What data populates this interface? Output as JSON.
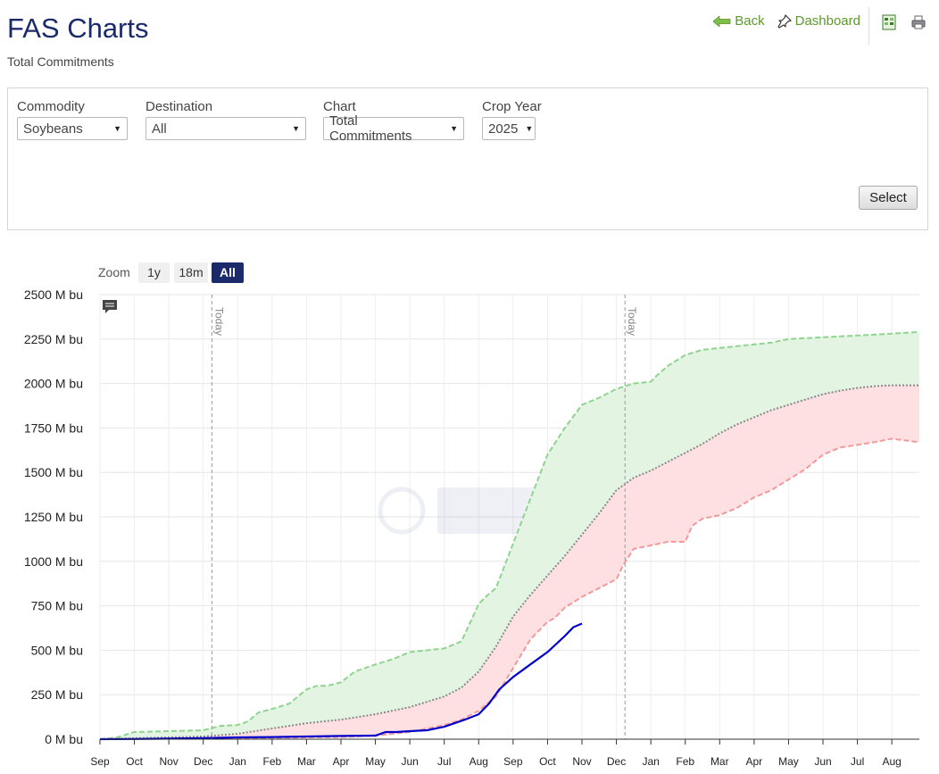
{
  "header": {
    "title": "FAS Charts",
    "subtitle": "Total Commitments"
  },
  "nav": {
    "back_label": "Back",
    "dashboard_label": "Dashboard",
    "export_icon": "excel-icon",
    "print_icon": "print-icon"
  },
  "filters": {
    "commodity": {
      "label": "Commodity",
      "value": "Soybeans"
    },
    "destination": {
      "label": "Destination",
      "value": "All"
    },
    "chart": {
      "label": "Chart",
      "value": "Total Commitments"
    },
    "crop_year": {
      "label": "Crop Year",
      "value": "2025"
    },
    "select_label": "Select"
  },
  "zoom": {
    "label": "Zoom",
    "options": [
      "1y",
      "18m",
      "All"
    ],
    "selected": "All"
  },
  "colors": {
    "accent": "#1b2a6b",
    "link": "#5a9a2a",
    "current": "#0000cc",
    "max_line": "#8fd48f",
    "min_line": "#f29a9a",
    "fill_upper": "#e3f4e3",
    "fill_lower": "#ffe0e2",
    "avg_line": "#888888"
  },
  "chart_data": {
    "type": "area",
    "ylim": [
      0,
      2500
    ],
    "y_ticks": [
      "0 M bu",
      "250 M bu",
      "500 M bu",
      "750 M bu",
      "1000 M bu",
      "1250 M bu",
      "1500 M bu",
      "1750 M bu",
      "2000 M bu",
      "2250 M bu",
      "2500 M bu"
    ],
    "y_tick_values": [
      0,
      250,
      500,
      750,
      1000,
      1250,
      1500,
      1750,
      2000,
      2250,
      2500
    ],
    "x_ticks": [
      "Sep",
      "Oct",
      "Nov",
      "Dec",
      "Jan",
      "Feb",
      "Mar",
      "Apr",
      "May",
      "Jun",
      "Jul",
      "Aug",
      "Sep",
      "Oct",
      "Nov",
      "Dec",
      "Jan",
      "Feb",
      "Mar",
      "Apr",
      "May",
      "Jun",
      "Jul",
      "Aug"
    ],
    "today_label": "Today",
    "today_markers": [
      3.25,
      15.25
    ],
    "grid": true,
    "series": [
      {
        "key": "max",
        "x": [
          0,
          0.5,
          1,
          2,
          3,
          3.2,
          3.5,
          4,
          4.3,
          4.6,
          5,
          5.5,
          6,
          6.3,
          6.6,
          7,
          7.4,
          8,
          8.5,
          9,
          9.5,
          10,
          10.5,
          11,
          11.2,
          11.5,
          12,
          12.5,
          13,
          13.5,
          14,
          14.5,
          15,
          15.5,
          16,
          16.2,
          16.5,
          17,
          17.5,
          18,
          18.5,
          19,
          19.5,
          20,
          20.5,
          21,
          21.5,
          22,
          22.5,
          23,
          23.8
        ],
        "y": [
          0,
          10,
          40,
          45,
          50,
          60,
          75,
          80,
          100,
          150,
          170,
          200,
          280,
          300,
          300,
          320,
          380,
          420,
          450,
          490,
          500,
          510,
          550,
          760,
          800,
          850,
          1100,
          1350,
          1600,
          1750,
          1880,
          1920,
          1970,
          2000,
          2010,
          2050,
          2100,
          2160,
          2190,
          2200,
          2210,
          2220,
          2230,
          2250,
          2255,
          2260,
          2265,
          2270,
          2275,
          2280,
          2290
        ]
      },
      {
        "key": "avg",
        "x": [
          0,
          1,
          2,
          3,
          4,
          5,
          6,
          7,
          8,
          9,
          10,
          10.5,
          11,
          11.5,
          12,
          12.5,
          13,
          13.5,
          14,
          14.5,
          15,
          15.5,
          16,
          16.5,
          17,
          17.5,
          18,
          18.5,
          19,
          19.5,
          20,
          20.5,
          21,
          21.5,
          22,
          22.5,
          23,
          23.8
        ],
        "y": [
          0,
          5,
          10,
          15,
          30,
          60,
          90,
          110,
          140,
          180,
          240,
          290,
          380,
          520,
          690,
          810,
          920,
          1030,
          1150,
          1270,
          1400,
          1470,
          1510,
          1560,
          1610,
          1660,
          1720,
          1770,
          1810,
          1850,
          1880,
          1910,
          1940,
          1960,
          1975,
          1985,
          1990,
          1990
        ]
      },
      {
        "key": "min",
        "x": [
          0,
          1,
          2,
          3,
          4,
          5,
          6,
          7,
          8,
          9,
          10,
          10.5,
          11,
          11.5,
          12,
          12.5,
          13,
          13.2,
          13.5,
          14,
          14.5,
          15,
          15.2,
          15.5,
          16,
          16.5,
          17,
          17.2,
          17.5,
          18,
          18.5,
          19,
          19.5,
          20,
          20.5,
          21,
          21.5,
          22,
          22.5,
          23,
          23.8
        ],
        "y": [
          0,
          2,
          3,
          4,
          6,
          8,
          10,
          12,
          20,
          40,
          80,
          110,
          160,
          240,
          400,
          560,
          660,
          680,
          740,
          800,
          850,
          900,
          980,
          1070,
          1090,
          1110,
          1110,
          1200,
          1240,
          1260,
          1300,
          1360,
          1400,
          1460,
          1520,
          1600,
          1640,
          1655,
          1670,
          1690,
          1670
        ]
      },
      {
        "key": "current",
        "x": [
          0,
          1,
          2,
          3,
          4,
          5,
          6,
          7,
          8,
          8.3,
          8.6,
          9,
          9.5,
          10,
          10.3,
          10.6,
          11,
          11.3,
          11.6,
          12,
          12.5,
          13,
          13.5,
          13.75,
          14
        ],
        "y": [
          0,
          1,
          3,
          6,
          10,
          12,
          15,
          18,
          20,
          40,
          40,
          45,
          50,
          70,
          90,
          110,
          140,
          200,
          280,
          350,
          420,
          490,
          580,
          630,
          650
        ]
      }
    ]
  }
}
